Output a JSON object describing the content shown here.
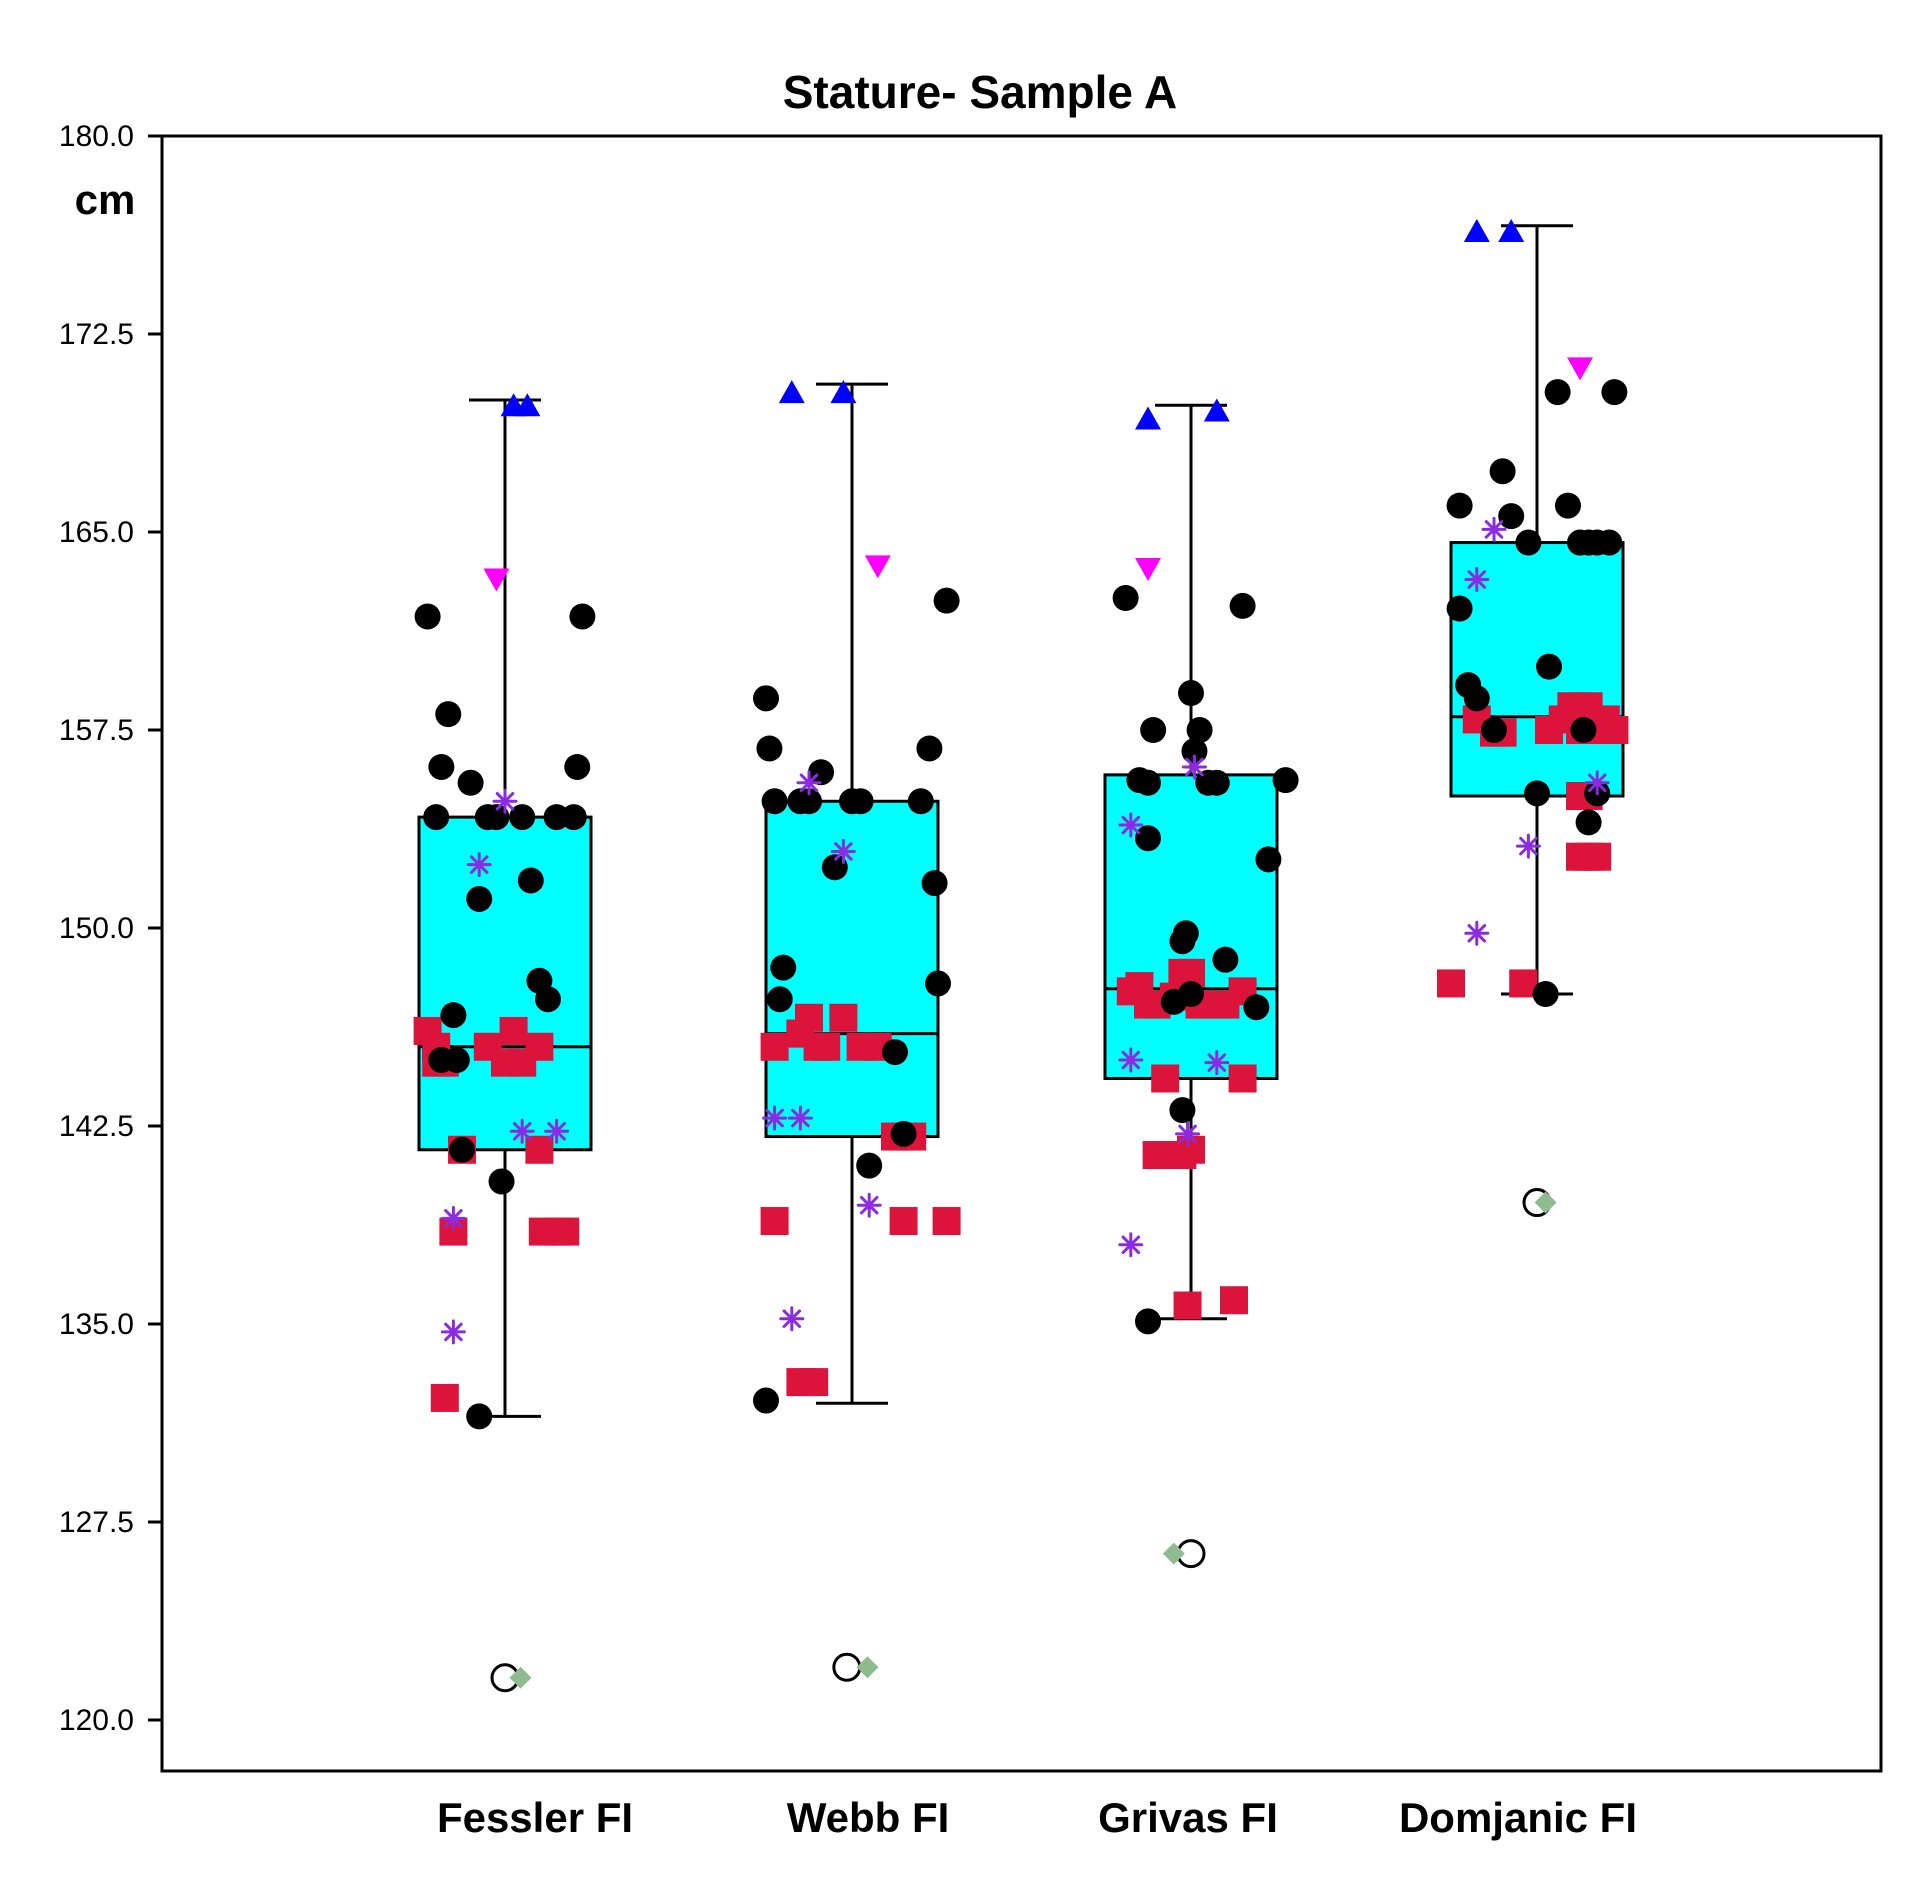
{
  "chart_data": {
    "type": "boxplot",
    "title": "Stature- Sample A",
    "ylabel": "cm",
    "ylim": [
      118.1,
      180.0
    ],
    "yticks": [
      120.0,
      127.5,
      135.0,
      142.5,
      150.0,
      157.5,
      165.0,
      172.5,
      180.0
    ],
    "ytick_labels": [
      "120.0",
      "127.5",
      "135.0",
      "142.5",
      "150.0",
      "157.5",
      "165.0",
      "172.5",
      "180.0"
    ],
    "categories": [
      "Fessler FI",
      "Webb FI",
      "Grivas FI",
      "Domjanic FI"
    ],
    "colors": {
      "box_fill": "#00ffff",
      "circle": "#000000",
      "square": "#dc143c",
      "asterisk": "#8a2be2",
      "triangle_up": "#0000ff",
      "triangle_down": "#ff00ff",
      "diamond": "#8fbc8f"
    },
    "boxes": [
      {
        "category": "Fessler FI",
        "whisker_low": 131.5,
        "q1": 141.6,
        "median": 145.5,
        "q3": 154.2,
        "whisker_high": 170.0
      },
      {
        "category": "Webb FI",
        "whisker_low": 132.0,
        "q1": 142.1,
        "median": 146.0,
        "q3": 154.8,
        "whisker_high": 170.6
      },
      {
        "category": "Grivas FI",
        "whisker_low": 135.2,
        "q1": 144.3,
        "median": 147.7,
        "q3": 155.8,
        "whisker_high": 169.8
      },
      {
        "category": "Domjanic FI",
        "whisker_low": 147.5,
        "q1": 155.0,
        "median": 158.0,
        "q3": 164.6,
        "whisker_high": 176.6
      }
    ],
    "series": [
      {
        "name": "circles",
        "marker": "circle",
        "points": [
          [
            0,
            -0.45,
            161.8
          ],
          [
            0,
            -0.4,
            154.2
          ],
          [
            0,
            -0.37,
            156.1
          ],
          [
            0,
            -0.33,
            158.1
          ],
          [
            0,
            -0.3,
            146.7
          ],
          [
            0,
            -0.28,
            145.0
          ],
          [
            0,
            -0.25,
            141.6
          ],
          [
            0,
            -0.2,
            155.5
          ],
          [
            0,
            -0.15,
            151.1
          ],
          [
            0,
            -0.1,
            154.2
          ],
          [
            0,
            -0.05,
            154.2
          ],
          [
            0,
            -0.02,
            140.4
          ],
          [
            0,
            -0.15,
            131.5
          ],
          [
            0,
            0.1,
            154.2
          ],
          [
            0,
            0.15,
            151.8
          ],
          [
            0,
            0.2,
            148.0
          ],
          [
            0,
            0.25,
            147.3
          ],
          [
            0,
            0.3,
            154.2
          ],
          [
            0,
            0.4,
            154.2
          ],
          [
            0,
            0.45,
            161.8
          ],
          [
            0,
            0.42,
            156.1
          ],
          [
            0,
            -0.37,
            145.0
          ],
          [
            1,
            -0.5,
            158.7
          ],
          [
            1,
            -0.48,
            156.8
          ],
          [
            1,
            -0.45,
            154.8
          ],
          [
            1,
            -0.4,
            148.5
          ],
          [
            1,
            -0.42,
            147.3
          ],
          [
            1,
            -0.3,
            154.8
          ],
          [
            1,
            -0.25,
            154.8
          ],
          [
            1,
            -0.18,
            155.9
          ],
          [
            1,
            -0.1,
            152.3
          ],
          [
            1,
            0.0,
            154.8
          ],
          [
            1,
            0.05,
            154.8
          ],
          [
            1,
            0.1,
            141.0
          ],
          [
            1,
            0.25,
            145.3
          ],
          [
            1,
            0.3,
            142.2
          ],
          [
            1,
            0.4,
            154.8
          ],
          [
            1,
            0.45,
            156.8
          ],
          [
            1,
            0.48,
            151.7
          ],
          [
            1,
            0.5,
            147.9
          ],
          [
            1,
            0.55,
            162.4
          ],
          [
            1,
            -0.5,
            132.1
          ],
          [
            2,
            -0.38,
            162.5
          ],
          [
            2,
            -0.3,
            155.6
          ],
          [
            2,
            -0.25,
            153.4
          ],
          [
            2,
            -0.22,
            157.5
          ],
          [
            2,
            -0.25,
            155.5
          ],
          [
            2,
            -0.1,
            147.2
          ],
          [
            2,
            -0.05,
            149.5
          ],
          [
            2,
            -0.03,
            149.8
          ],
          [
            2,
            0.0,
            158.9
          ],
          [
            2,
            0.05,
            157.5
          ],
          [
            2,
            0.1,
            155.5
          ],
          [
            2,
            0.0,
            147.5
          ],
          [
            2,
            0.15,
            155.5
          ],
          [
            2,
            0.2,
            148.8
          ],
          [
            2,
            0.3,
            162.2
          ],
          [
            2,
            0.38,
            147.0
          ],
          [
            2,
            0.45,
            152.6
          ],
          [
            2,
            0.55,
            155.6
          ],
          [
            2,
            -0.05,
            143.1
          ],
          [
            2,
            -0.25,
            135.1
          ],
          [
            2,
            0.02,
            156.7
          ],
          [
            3,
            -0.45,
            166.0
          ],
          [
            3,
            -0.45,
            162.1
          ],
          [
            3,
            -0.4,
            159.2
          ],
          [
            3,
            -0.35,
            158.7
          ],
          [
            3,
            -0.25,
            157.5
          ],
          [
            3,
            -0.2,
            167.3
          ],
          [
            3,
            -0.15,
            165.6
          ],
          [
            3,
            -0.05,
            164.6
          ],
          [
            3,
            0.07,
            159.9
          ],
          [
            3,
            0.12,
            170.3
          ],
          [
            3,
            0.18,
            166.0
          ],
          [
            3,
            0.25,
            164.6
          ],
          [
            3,
            0.3,
            164.6
          ],
          [
            3,
            0.35,
            164.6
          ],
          [
            3,
            0.42,
            164.6
          ],
          [
            3,
            0.27,
            157.5
          ],
          [
            3,
            0.3,
            154.0
          ],
          [
            3,
            0.35,
            155.1
          ],
          [
            3,
            0.45,
            170.3
          ],
          [
            3,
            0.05,
            147.5
          ],
          [
            3,
            0.0,
            155.1
          ]
        ]
      },
      {
        "name": "squares",
        "marker": "square",
        "points": [
          [
            0,
            -0.45,
            146.1
          ],
          [
            0,
            -0.4,
            145.5
          ],
          [
            0,
            -0.4,
            144.9
          ],
          [
            0,
            -0.35,
            144.9
          ],
          [
            0,
            -0.3,
            138.5
          ],
          [
            0,
            -0.35,
            132.2
          ],
          [
            0,
            -0.25,
            141.6
          ],
          [
            0,
            -0.1,
            145.5
          ],
          [
            0,
            0.05,
            146.1
          ],
          [
            0,
            0.0,
            144.9
          ],
          [
            0,
            0.1,
            144.9
          ],
          [
            0,
            0.2,
            145.5
          ],
          [
            0,
            0.2,
            141.6
          ],
          [
            0,
            0.22,
            138.5
          ],
          [
            0,
            0.3,
            138.5
          ],
          [
            0,
            0.35,
            138.5
          ],
          [
            1,
            -0.45,
            145.5
          ],
          [
            1,
            -0.3,
            146.0
          ],
          [
            1,
            -0.25,
            146.6
          ],
          [
            1,
            -0.2,
            145.5
          ],
          [
            1,
            -0.15,
            145.5
          ],
          [
            1,
            -0.05,
            146.6
          ],
          [
            1,
            0.05,
            145.5
          ],
          [
            1,
            0.15,
            145.5
          ],
          [
            1,
            0.25,
            142.1
          ],
          [
            1,
            0.3,
            142.1
          ],
          [
            1,
            0.35,
            142.1
          ],
          [
            1,
            -0.45,
            138.9
          ],
          [
            1,
            -0.3,
            132.8
          ],
          [
            1,
            -0.22,
            132.8
          ],
          [
            1,
            0.3,
            138.9
          ],
          [
            1,
            0.55,
            138.9
          ],
          [
            2,
            -0.35,
            147.6
          ],
          [
            2,
            -0.3,
            147.8
          ],
          [
            2,
            -0.25,
            147.1
          ],
          [
            2,
            -0.2,
            147.1
          ],
          [
            2,
            -0.1,
            147.4
          ],
          [
            2,
            -0.05,
            148.3
          ],
          [
            2,
            0.0,
            148.3
          ],
          [
            2,
            0.05,
            147.1
          ],
          [
            2,
            0.1,
            147.1
          ],
          [
            2,
            0.15,
            147.1
          ],
          [
            2,
            0.2,
            147.1
          ],
          [
            2,
            0.3,
            147.6
          ],
          [
            2,
            0.3,
            144.3
          ],
          [
            2,
            -0.15,
            144.3
          ],
          [
            2,
            -0.2,
            141.4
          ],
          [
            2,
            -0.05,
            141.4
          ],
          [
            2,
            0.0,
            141.6
          ],
          [
            2,
            -0.02,
            135.7
          ],
          [
            2,
            0.25,
            135.9
          ],
          [
            3,
            -0.5,
            147.9
          ],
          [
            3,
            -0.35,
            157.9
          ],
          [
            3,
            -0.25,
            157.4
          ],
          [
            3,
            -0.2,
            157.4
          ],
          [
            3,
            -0.08,
            147.9
          ],
          [
            3,
            0.07,
            157.5
          ],
          [
            3,
            0.15,
            157.9
          ],
          [
            3,
            0.2,
            158.4
          ],
          [
            3,
            0.25,
            157.5
          ],
          [
            3,
            0.3,
            158.4
          ],
          [
            3,
            0.35,
            157.5
          ],
          [
            3,
            0.4,
            157.9
          ],
          [
            3,
            0.45,
            157.5
          ],
          [
            3,
            0.25,
            155.0
          ],
          [
            3,
            0.3,
            155.0
          ],
          [
            3,
            0.25,
            152.7
          ],
          [
            3,
            0.3,
            152.7
          ],
          [
            3,
            0.35,
            152.7
          ]
        ]
      },
      {
        "name": "asterisks",
        "marker": "asterisk",
        "points": [
          [
            0,
            0.0,
            154.8
          ],
          [
            0,
            -0.15,
            152.4
          ],
          [
            0,
            -0.3,
            139.0
          ],
          [
            0,
            -0.3,
            134.7
          ],
          [
            0,
            0.1,
            142.3
          ],
          [
            0,
            0.3,
            142.3
          ],
          [
            1,
            -0.45,
            142.8
          ],
          [
            1,
            -0.3,
            142.8
          ],
          [
            1,
            -0.25,
            155.5
          ],
          [
            1,
            -0.05,
            152.9
          ],
          [
            1,
            -0.35,
            135.2
          ],
          [
            1,
            0.1,
            139.5
          ],
          [
            2,
            -0.35,
            153.9
          ],
          [
            2,
            -0.35,
            145.0
          ],
          [
            2,
            -0.35,
            138.0
          ],
          [
            2,
            0.02,
            156.1
          ],
          [
            2,
            -0.02,
            142.2
          ],
          [
            2,
            0.15,
            144.9
          ],
          [
            3,
            -0.35,
            163.2
          ],
          [
            3,
            -0.25,
            165.1
          ],
          [
            3,
            -0.35,
            149.8
          ],
          [
            3,
            -0.05,
            153.1
          ],
          [
            3,
            0.35,
            155.5
          ]
        ]
      },
      {
        "name": "triangles_up",
        "marker": "triangle_up",
        "points": [
          [
            0,
            0.05,
            169.8
          ],
          [
            0,
            0.13,
            169.8
          ],
          [
            1,
            -0.35,
            170.3
          ],
          [
            1,
            -0.05,
            170.3
          ],
          [
            2,
            -0.25,
            169.3
          ],
          [
            2,
            0.15,
            169.6
          ],
          [
            3,
            -0.35,
            176.4
          ],
          [
            3,
            -0.15,
            176.4
          ]
        ]
      },
      {
        "name": "triangles_down",
        "marker": "triangle_down",
        "points": [
          [
            0,
            -0.05,
            163.2
          ],
          [
            1,
            0.15,
            163.7
          ],
          [
            2,
            -0.25,
            163.6
          ],
          [
            3,
            0.25,
            171.2
          ]
        ]
      },
      {
        "name": "diamonds",
        "marker": "diamond",
        "points": [
          [
            0,
            0.09,
            121.6
          ],
          [
            1,
            0.09,
            122.0
          ],
          [
            2,
            -0.1,
            126.3
          ],
          [
            3,
            0.05,
            139.6
          ]
        ]
      },
      {
        "name": "open_circles",
        "marker": "open_circle",
        "points": [
          [
            0,
            0.0,
            121.6
          ],
          [
            1,
            -0.03,
            122.0
          ],
          [
            2,
            0.0,
            126.3
          ],
          [
            3,
            0.0,
            139.6
          ]
        ]
      }
    ]
  }
}
